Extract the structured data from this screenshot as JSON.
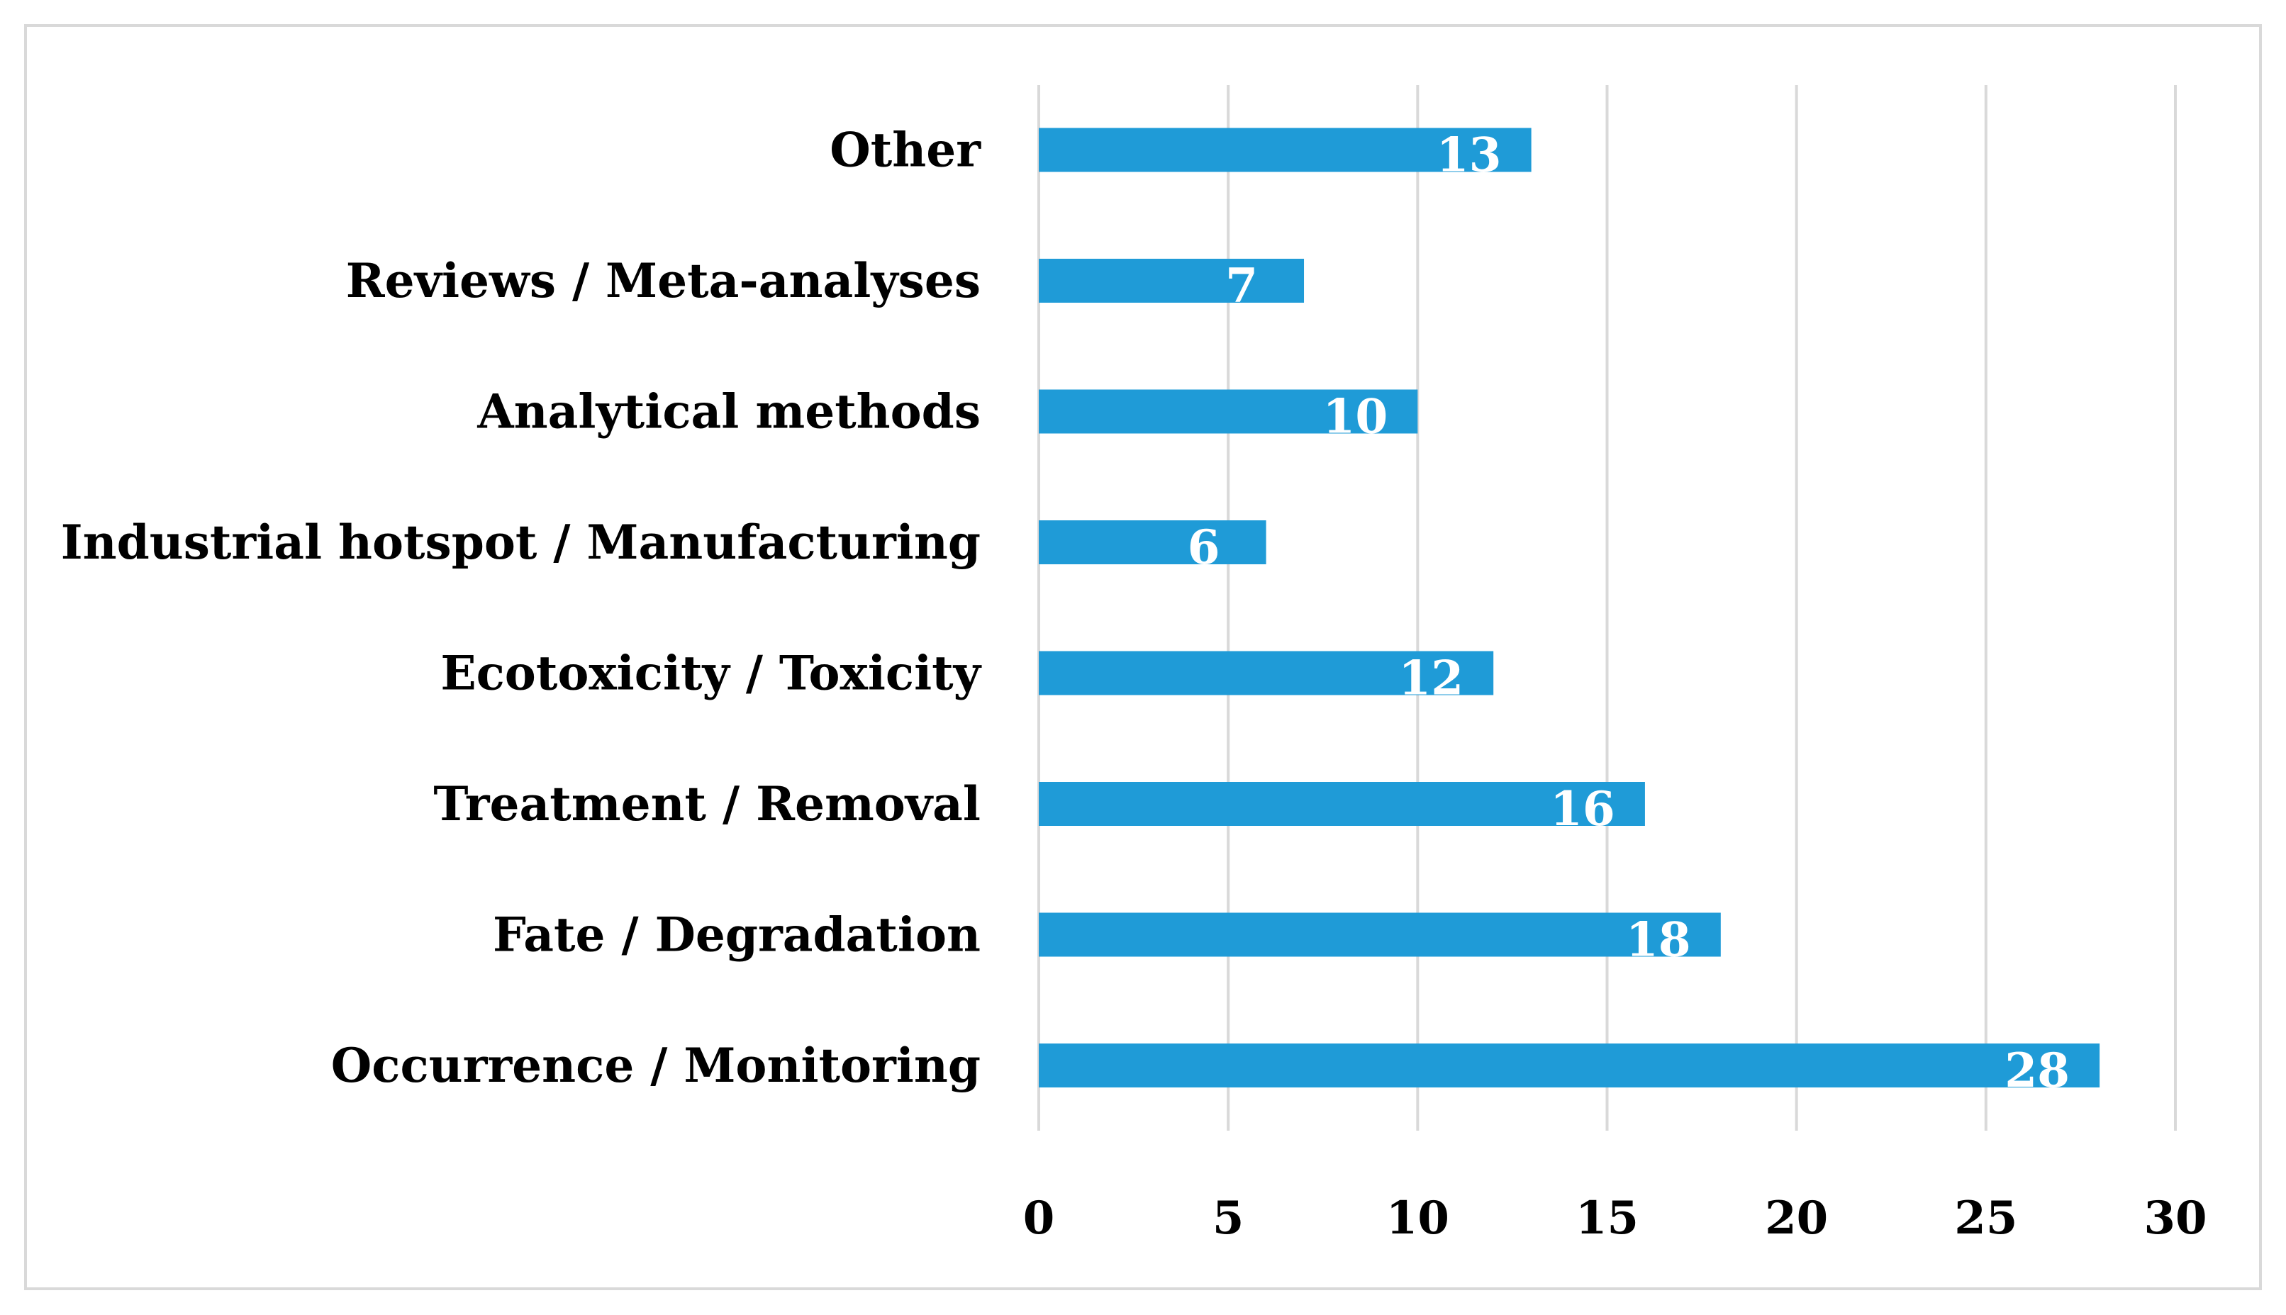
{
  "chart_data": {
    "type": "bar",
    "orientation": "horizontal",
    "title": "",
    "xlabel": "",
    "ylabel": "",
    "categories": [
      "Occurrence / Monitoring",
      "Fate / Degradation",
      "Treatment / Removal",
      "Ecotoxicity / Toxicity",
      "Industrial hotspot / Manufacturing",
      "Analytical methods",
      "Reviews / Meta-analyses",
      "Other"
    ],
    "values": [
      28,
      18,
      16,
      12,
      6,
      10,
      7,
      13
    ],
    "data_labels": [
      "28",
      "18",
      "16",
      "12",
      "6",
      "10",
      "7",
      "13"
    ],
    "xlim": [
      0,
      30
    ],
    "x_ticks": [
      0,
      5,
      10,
      15,
      20,
      25,
      30
    ],
    "x_tick_labels": [
      "0",
      "5",
      "10",
      "15",
      "20",
      "25",
      "30"
    ],
    "grid": "vertical",
    "legend": "none",
    "bar_color": "#1f9bd7",
    "grid_color": "#d9d9d9",
    "label_color": "#ffffff"
  }
}
